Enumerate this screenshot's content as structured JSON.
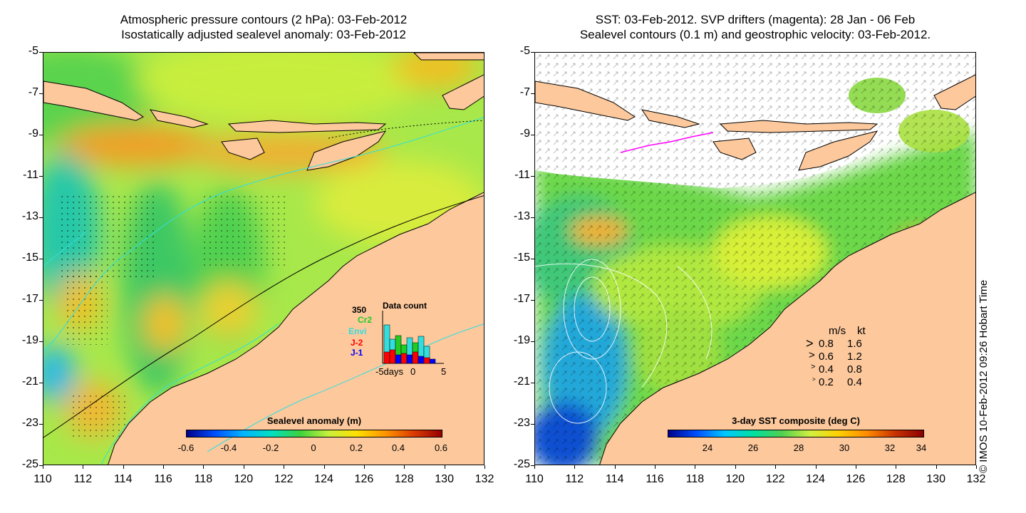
{
  "left_panel": {
    "title_line1": "Atmospheric pressure contours (2 hPa): 03-Feb-2012",
    "title_line2": "Isostatically adjusted sealevel anomaly: 03-Feb-2012",
    "colorbar": {
      "title": "Sealevel anomaly (m)",
      "ticks": [
        "-0.6",
        "-0.4",
        "-0.2",
        "0",
        "0.2",
        "0.4",
        "0.6"
      ]
    },
    "data_count": {
      "title": "Data count",
      "max": "350",
      "missions": [
        "Cr2",
        "Envi",
        "J-2",
        "J-1"
      ],
      "mission_colors": [
        "#22cc22",
        "#33dddd",
        "#ff0000",
        "#0000ff"
      ],
      "x_axis": [
        "-5days",
        "0",
        "5"
      ]
    }
  },
  "right_panel": {
    "title_line1": "SST: 03-Feb-2012. SVP drifters (magenta): 28 Jan - 06 Feb",
    "title_line2": "Sealevel contours (0.1 m) and geostrophic velocity: 03-Feb-2012.",
    "colorbar": {
      "title": "3-day SST composite (deg C)",
      "ticks": [
        "24",
        "26",
        "28",
        "30",
        "32",
        "34"
      ]
    },
    "velocity_legend": {
      "header_ms": "m/s",
      "header_kt": "kt",
      "rows": [
        {
          "ms": "0.8",
          "kt": "1.6"
        },
        {
          "ms": "0.6",
          "kt": "1.2"
        },
        {
          "ms": "0.4",
          "kt": "0.8"
        },
        {
          "ms": "0.2",
          "kt": "0.4"
        }
      ]
    },
    "credit": "© IMOS 10-Feb-2012 09:26 Hobart Time"
  },
  "axes": {
    "latitudes": [
      "-5",
      "-7",
      "-9",
      "-11",
      "-13",
      "-15",
      "-17",
      "-19",
      "-21",
      "-23",
      "-25"
    ],
    "longitudes": [
      "110",
      "112",
      "114",
      "116",
      "118",
      "120",
      "122",
      "124",
      "126",
      "128",
      "130",
      "132"
    ]
  },
  "colors": {
    "land": "#fcc89c",
    "sla_scale": [
      "#00008b",
      "#0050ff",
      "#00b4ff",
      "#00e0c0",
      "#3cd23c",
      "#c8f03c",
      "#ffe000",
      "#ff9600",
      "#dc3c00",
      "#960000"
    ],
    "sst_scale": [
      "#00008b",
      "#0050ff",
      "#00c8ff",
      "#00e0a0",
      "#50d050",
      "#d0f040",
      "#ffd000",
      "#ff8c00",
      "#c83200",
      "#8b0000"
    ]
  }
}
